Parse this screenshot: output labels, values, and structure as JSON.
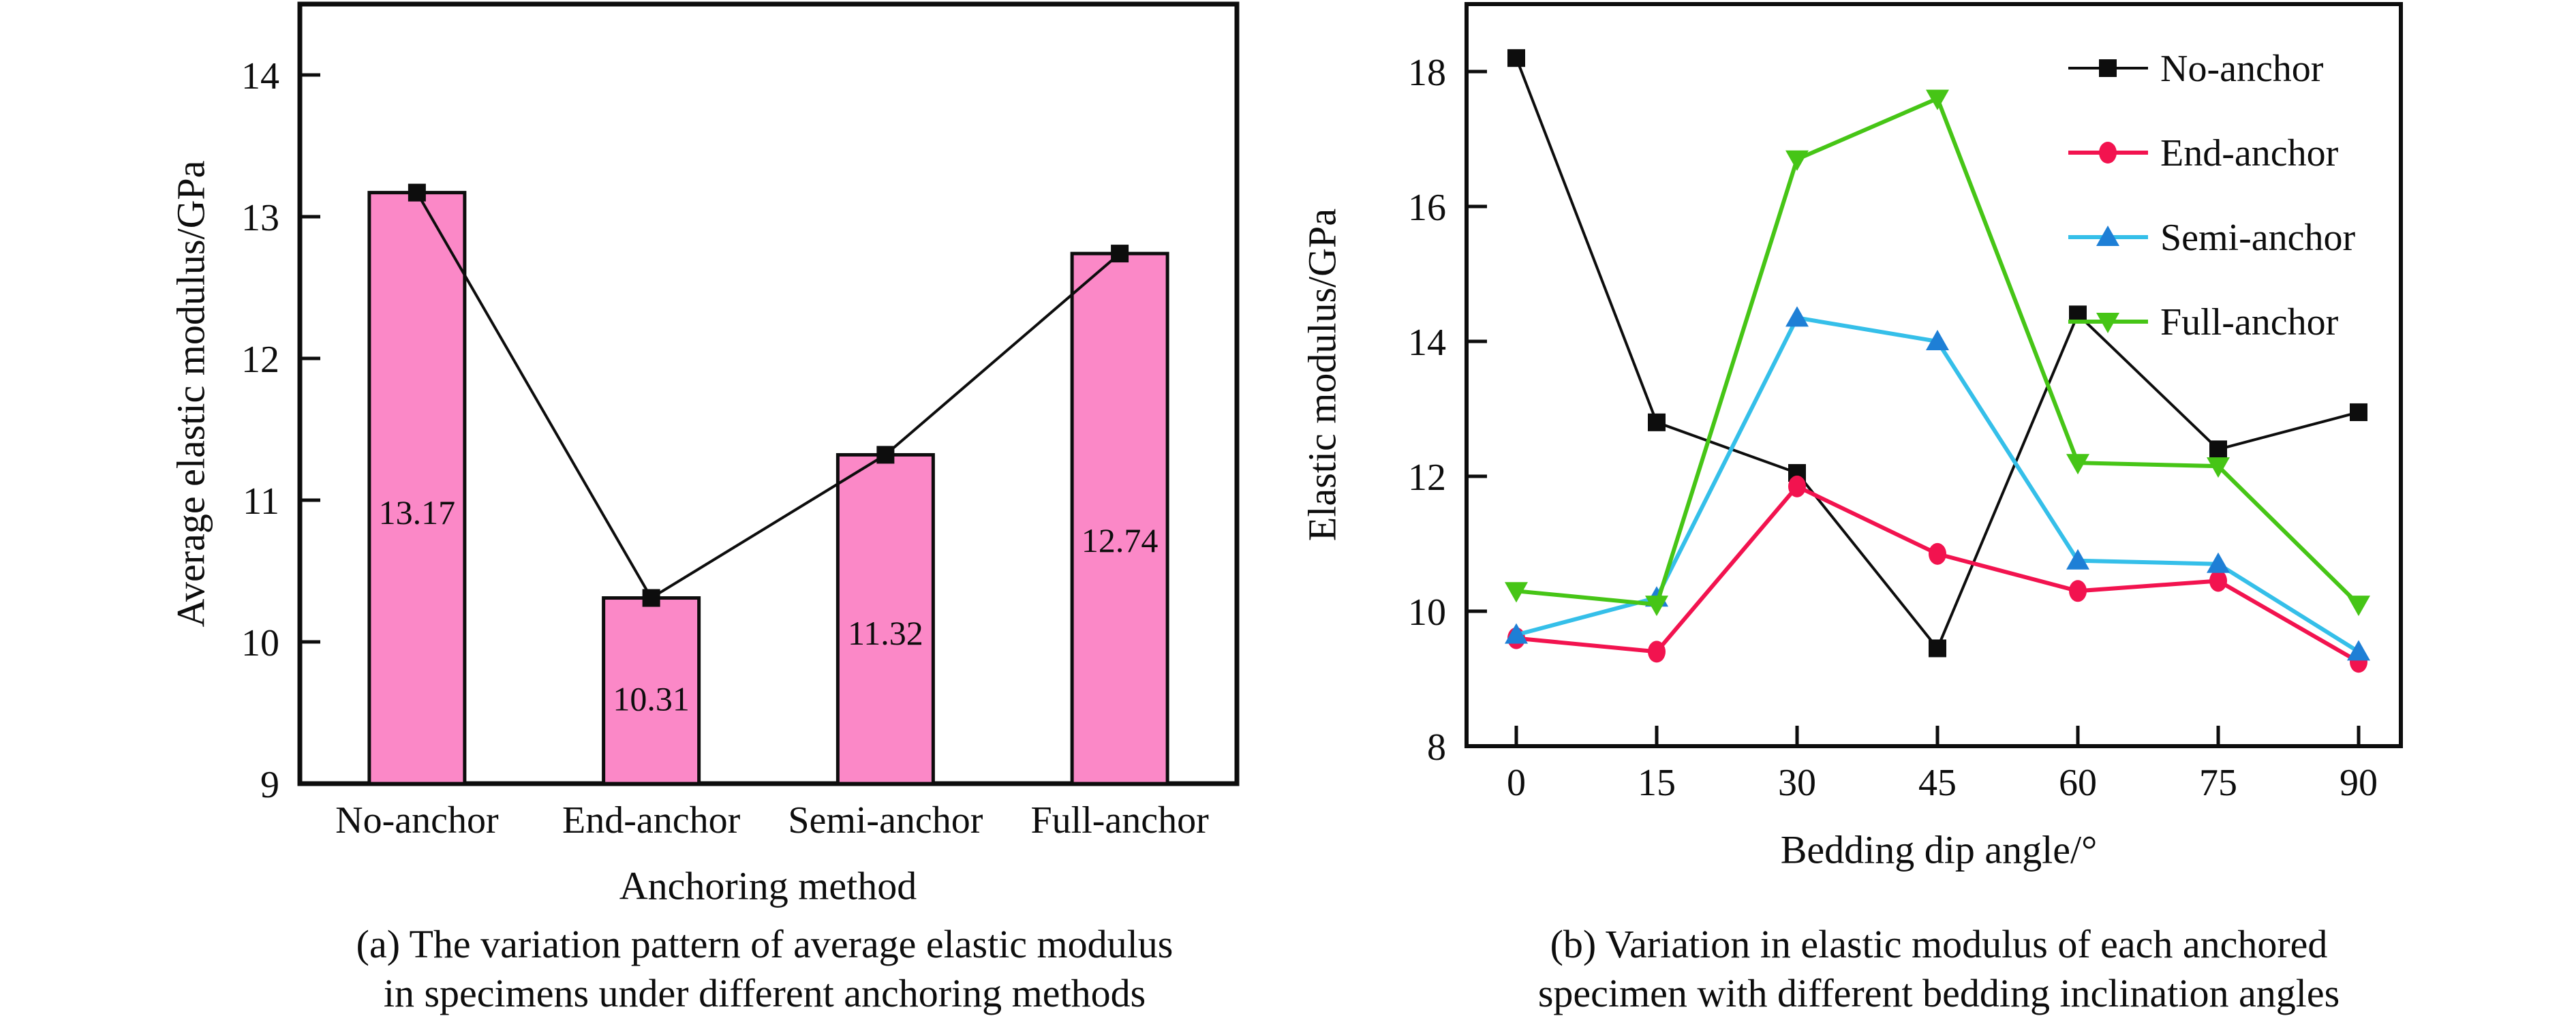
{
  "figure_background": "#ffffff",
  "text_color": "#0d0d0d",
  "chart_data": [
    {
      "type": "bar",
      "panel": "a",
      "categories": [
        "No-anchor",
        "End-anchor",
        "Semi-anchor",
        "Full-anchor"
      ],
      "values": [
        13.17,
        10.31,
        11.32,
        12.74
      ],
      "bar_labels": [
        "13.17",
        "10.31",
        "11.32",
        "12.74"
      ],
      "xlabel": "Anchoring method",
      "ylabel": "Average elastic modulus/GPa",
      "ylim": [
        9,
        14.5
      ],
      "yticks": [
        9,
        10,
        11,
        12,
        13,
        14
      ],
      "bar_color": "#FB88C7",
      "bar_edge_color": "#0d0d0d",
      "overlay_line": {
        "color": "#0d0d0d",
        "marker": "square"
      },
      "grid": false,
      "caption": [
        "(a) The variation pattern of average elastic modulus",
        "in specimens under different anchoring methods"
      ]
    },
    {
      "type": "line",
      "panel": "b",
      "x": [
        0,
        15,
        30,
        45,
        60,
        75,
        90
      ],
      "xticks": [
        "0",
        "15",
        "30",
        "45",
        "60",
        "75",
        "90"
      ],
      "series": [
        {
          "name": "No-anchor",
          "marker": "square",
          "color": "#0d0d0d",
          "line_color": "#0d0d0d",
          "line_width": 4,
          "values": [
            18.2,
            12.8,
            12.05,
            9.45,
            14.4,
            12.4,
            12.95
          ]
        },
        {
          "name": "End-anchor",
          "marker": "circle",
          "color": "#F2134F",
          "line_color": "#F2134F",
          "line_width": 6,
          "values": [
            9.6,
            9.4,
            11.85,
            10.85,
            10.3,
            10.45,
            9.25
          ]
        },
        {
          "name": "Semi-anchor",
          "marker": "triangle-up",
          "color": "#1E7FD6",
          "line_color": "#35BFE9",
          "line_width": 6,
          "values": [
            9.65,
            10.2,
            14.35,
            14.0,
            10.75,
            10.7,
            9.4
          ]
        },
        {
          "name": "Full-anchor",
          "marker": "triangle-down",
          "color": "#46C516",
          "line_color": "#46C516",
          "line_width": 6,
          "values": [
            10.3,
            10.1,
            16.7,
            17.6,
            12.2,
            12.15,
            10.1
          ]
        }
      ],
      "xlabel": "Bedding dip angle/°",
      "ylabel": "Elastic modulus/GPa",
      "ylim": [
        8,
        19.0
      ],
      "yticks": [
        8,
        10,
        12,
        14,
        16,
        18
      ],
      "legend_position": "top-right",
      "grid": false,
      "caption": [
        "(b) Variation in elastic modulus of each anchored",
        "specimen with different bedding inclination angles"
      ]
    }
  ]
}
